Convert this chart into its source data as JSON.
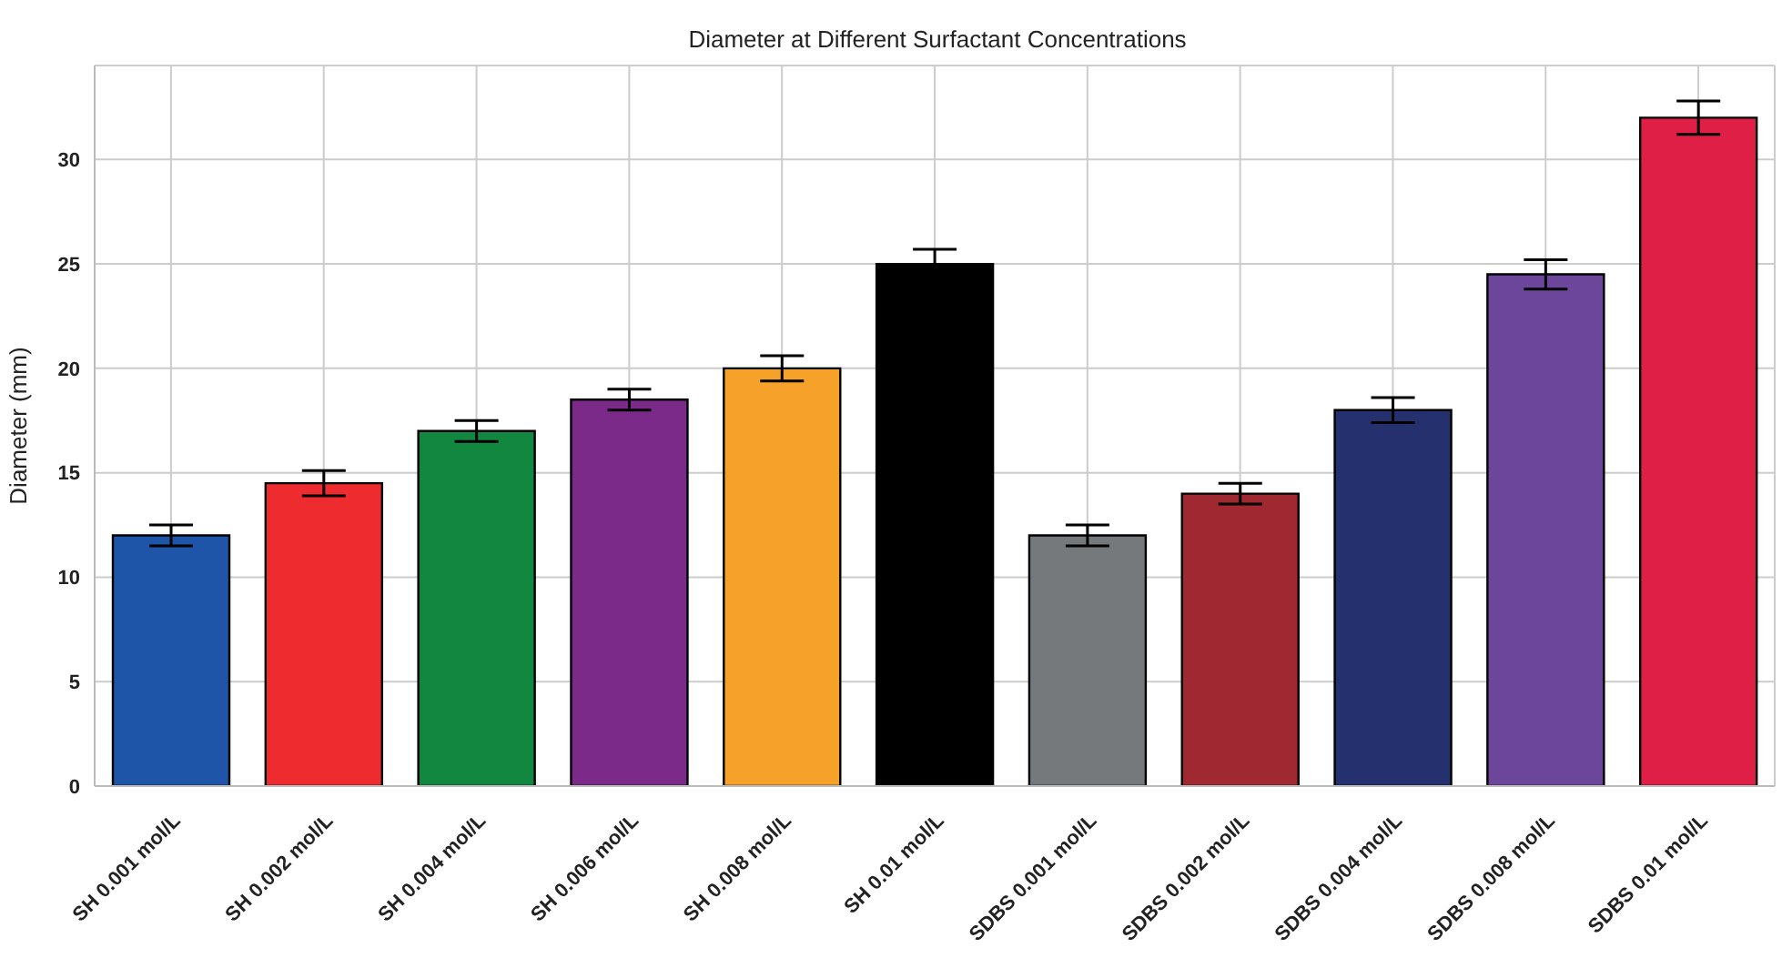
{
  "chart_data": {
    "type": "bar",
    "title": "Diameter at Different Surfactant Concentrations",
    "ylabel": "Diameter (mm)",
    "categories": [
      "SH 0.001 mol/L",
      "SH 0.002 mol/L",
      "SH 0.004 mol/L",
      "SH 0.006 mol/L",
      "SH 0.008 mol/L",
      "SH 0.01 mol/L",
      "SDBS 0.001 mol/L",
      "SDBS 0.002 mol/L",
      "SDBS 0.004 mol/L",
      "SDBS 0.008 mol/L",
      "SDBS 0.01 mol/L"
    ],
    "values": [
      12,
      14.5,
      17,
      18.5,
      20,
      25,
      12,
      14,
      18,
      24.5,
      32
    ],
    "errors": [
      0.5,
      0.6,
      0.5,
      0.5,
      0.6,
      0.7,
      0.5,
      0.5,
      0.6,
      0.7,
      0.8
    ],
    "colors": [
      "#1f55a8",
      "#ee2b2e",
      "#12873f",
      "#7b2a8a",
      "#f6a12a",
      "#000000",
      "#75797c",
      "#a02831",
      "#25306f",
      "#6b469b",
      "#e01f47"
    ],
    "ylim": [
      0,
      34.5
    ],
    "yticks": [
      0,
      5,
      10,
      15,
      20,
      25,
      30
    ],
    "grid": true
  }
}
